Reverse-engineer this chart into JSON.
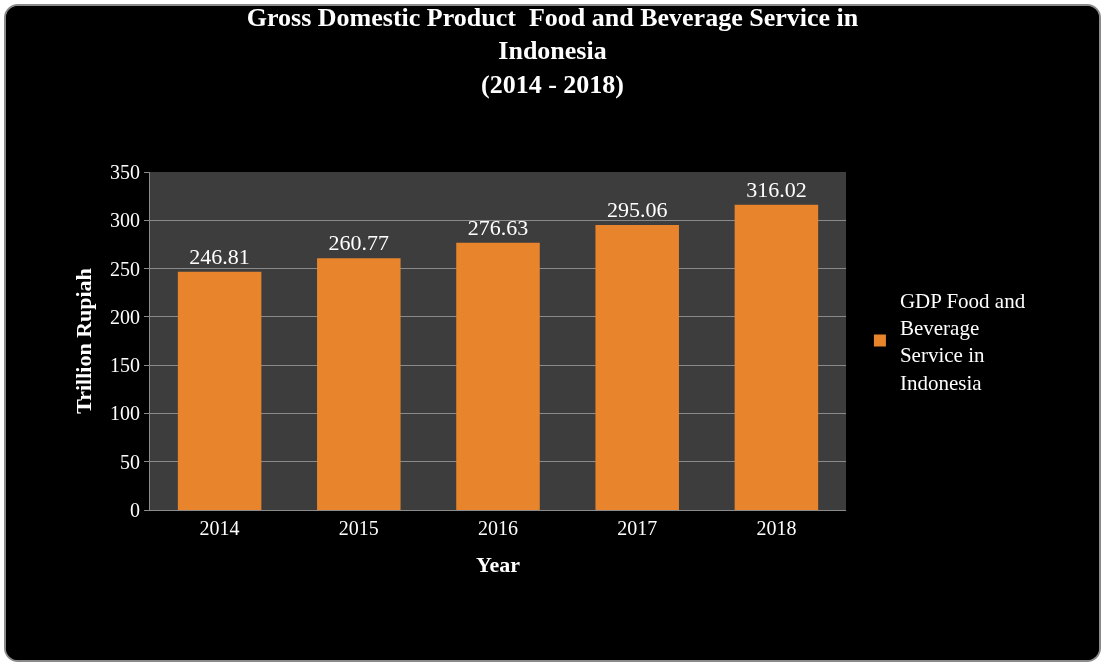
{
  "chart_data": {
    "type": "bar",
    "title": "Gross Domestic Product  Food and Beverage Service in Indonesia\n(2014 - 2018)",
    "xlabel": "Year",
    "ylabel": "Trillion Rupiah",
    "categories": [
      "2014",
      "2015",
      "2016",
      "2017",
      "2018"
    ],
    "series": [
      {
        "name": "GDP Food and Beverage Service in Indonesia",
        "color": "#e8852c",
        "values": [
          246.81,
          260.77,
          276.63,
          295.06,
          316.02
        ]
      }
    ],
    "ylim": [
      0,
      350
    ],
    "yticks": [
      0,
      50,
      100,
      150,
      200,
      250,
      300,
      350
    ],
    "grid": "y",
    "legend": "right",
    "data_labels": true
  }
}
